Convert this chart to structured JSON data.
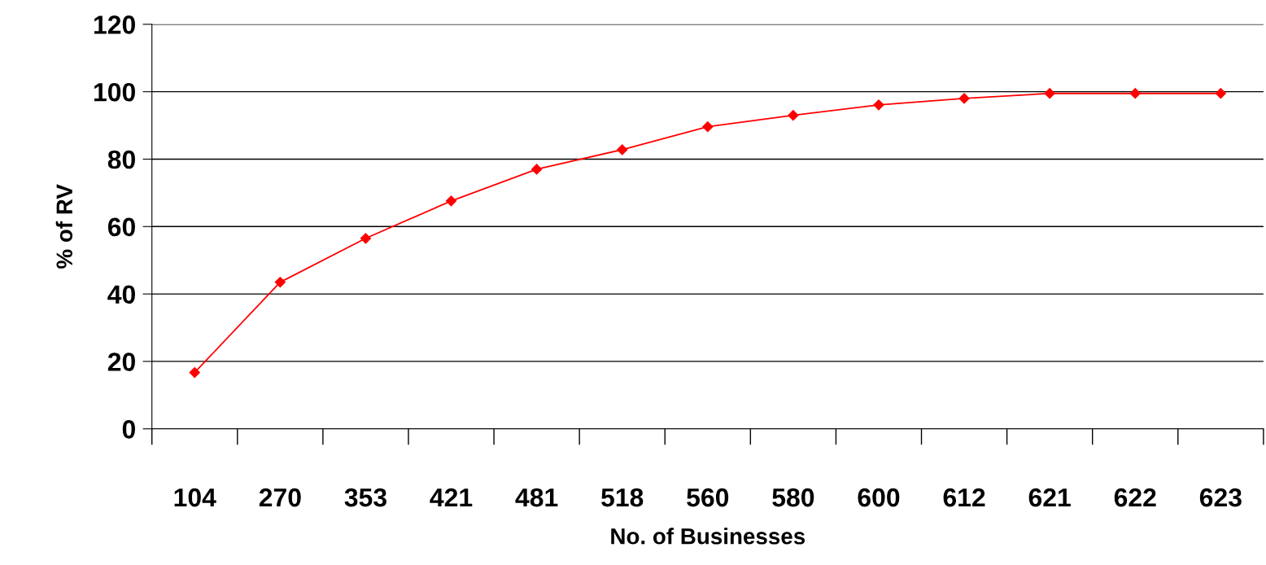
{
  "chart_data": {
    "type": "line",
    "xlabel": "No. of Businesses",
    "ylabel": "% of RV",
    "categories": [
      "104",
      "270",
      "353",
      "421",
      "481",
      "518",
      "560",
      "580",
      "600",
      "612",
      "621",
      "622",
      "623"
    ],
    "series": [
      {
        "color": "#ff0000",
        "values": [
          16.7,
          43.5,
          56.5,
          67.6,
          77.0,
          82.8,
          89.6,
          93.0,
          96.1,
          98.0,
          99.5,
          99.5,
          99.5
        ]
      }
    ],
    "ylim": [
      0,
      120
    ],
    "yticks": [
      0,
      20,
      40,
      60,
      80,
      100,
      120
    ],
    "grid": "y",
    "marker": "diamond",
    "line_style": "solid"
  }
}
